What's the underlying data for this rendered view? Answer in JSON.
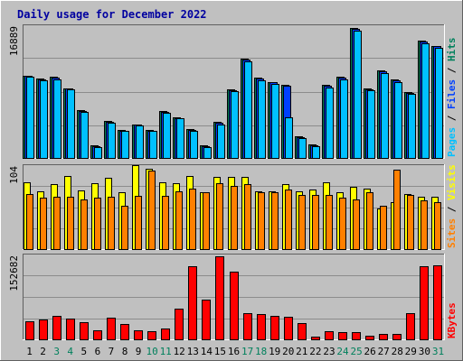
{
  "chart_data": {
    "type": "bar",
    "title": "Daily usage for December 2022",
    "days": [
      "1",
      "2",
      "3",
      "4",
      "5",
      "6",
      "7",
      "8",
      "9",
      "10",
      "11",
      "12",
      "13",
      "14",
      "15",
      "16",
      "17",
      "18",
      "19",
      "20",
      "21",
      "22",
      "23",
      "24",
      "25",
      "26",
      "27",
      "28",
      "29",
      "30",
      "31"
    ],
    "weekend_days": [
      "3",
      "4",
      "10",
      "11",
      "17",
      "18",
      "24",
      "25",
      "31"
    ],
    "colors": {
      "hits": "#00805c",
      "files": "#0040ff",
      "pages": "#00c0ff",
      "visits": "#ffff00",
      "sites": "#ff8000",
      "kbytes": "#ff0000",
      "weekday_label": "#000000",
      "weekend_label": "#00805c"
    },
    "panels": [
      {
        "id": "hits-files-pages",
        "ymax_label": "16889",
        "ylim": [
          0,
          16889
        ],
        "right_label": [
          {
            "text": "Pages",
            "color": "#00c0ff"
          },
          {
            "text": " / ",
            "color": "#000000"
          },
          {
            "text": "Files",
            "color": "#0040ff"
          },
          {
            "text": " / ",
            "color": "#000000"
          },
          {
            "text": "Hits",
            "color": "#00805c"
          }
        ],
        "series": [
          {
            "name": "Hits",
            "values": [
              10500,
              10100,
              10300,
              8900,
              6100,
              1600,
              4700,
              3600,
              4300,
              3600,
              6000,
              5200,
              3700,
              1600,
              4600,
              8700,
              12600,
              10200,
              9700,
              9300,
              2700,
              1700,
              9300,
              10300,
              16500,
              8800,
              11100,
              10000,
              8400,
              14900,
              14300
            ]
          },
          {
            "name": "Files",
            "values": [
              10400,
              10000,
              10200,
              8800,
              6000,
              1500,
              4600,
              3500,
              4200,
              3500,
              5900,
              5100,
              3600,
              1500,
              4500,
              8600,
              12500,
              10100,
              9600,
              9200,
              2600,
              1600,
              9200,
              10200,
              16400,
              8700,
              11000,
              9900,
              8300,
              14800,
              14200
            ]
          },
          {
            "name": "Pages",
            "values": [
              10300,
              9900,
              10000,
              8700,
              5900,
              1400,
              4500,
              3400,
              4100,
              3400,
              5800,
              5000,
              3500,
              1400,
              4200,
              8500,
              12300,
              9900,
              9400,
              5200,
              2500,
              1500,
              9000,
              10000,
              16200,
              8600,
              10800,
              9700,
              8200,
              14600,
              14000
            ]
          }
        ]
      },
      {
        "id": "visits-sites",
        "ymax_label": "104",
        "ylim": [
          0,
          104
        ],
        "right_label": [
          {
            "text": "Sites",
            "color": "#ff8000"
          },
          {
            "text": " / ",
            "color": "#000000"
          },
          {
            "text": "Visits",
            "color": "#ffff00"
          }
        ],
        "series": [
          {
            "name": "Visits",
            "values": [
              83,
              72,
              80,
              91,
              73,
              82,
              88,
              71,
              104,
              99,
              83,
              82,
              91,
              70,
              90,
              90,
              90,
              72,
              72,
              80,
              72,
              74,
              83,
              71,
              77,
              75,
              50,
              58,
              68,
              65,
              65
            ]
          },
          {
            "name": "Sites",
            "values": [
              68,
              64,
              65,
              65,
              62,
              64,
              65,
              54,
              66,
              97,
              66,
              72,
              75,
              70,
              82,
              78,
              80,
              71,
              70,
              74,
              67,
              67,
              67,
              64,
              62,
              71,
              54,
              98,
              67,
              60,
              58
            ]
          }
        ]
      },
      {
        "id": "kbytes",
        "ymax_label": "152682",
        "ylim": [
          0,
          152682
        ],
        "right_label": [
          {
            "text": "KBytes",
            "color": "#ff0000"
          }
        ],
        "series": [
          {
            "name": "KBytes",
            "values": [
              33000,
              35000,
              42000,
              38000,
              31000,
              17000,
              39000,
              27000,
              17000,
              15000,
              19000,
              56000,
              132000,
              72000,
              149000,
              122000,
              47000,
              46000,
              43000,
              40000,
              29000,
              5000,
              14000,
              13000,
              13000,
              7000,
              10000,
              10000,
              47000,
              131000,
              134000
            ]
          }
        ]
      }
    ]
  }
}
